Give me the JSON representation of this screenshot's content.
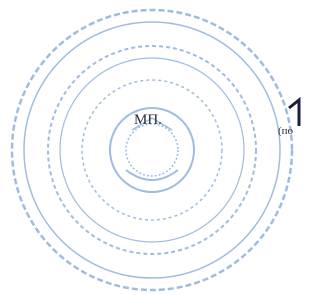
{
  "stamp_label": "МП.",
  "signature_note": "(по"
}
